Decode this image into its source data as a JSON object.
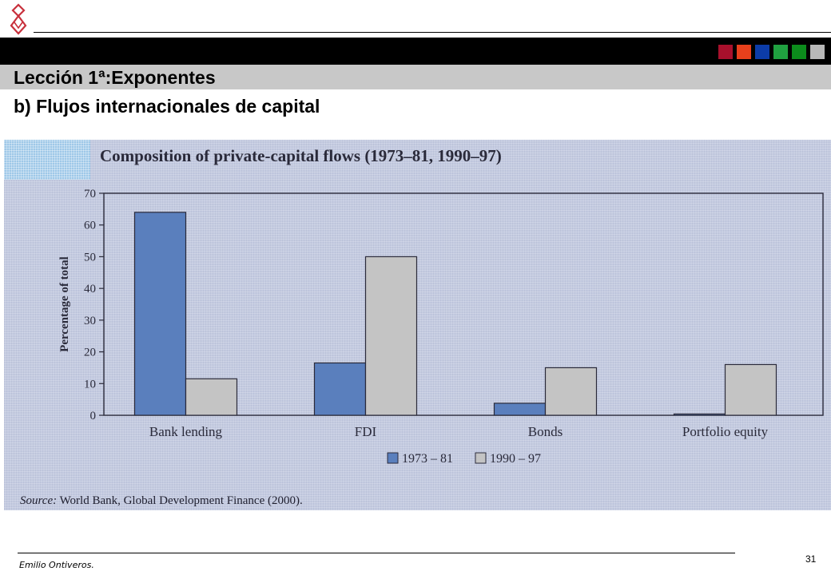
{
  "slide": {
    "title": "Lección 1ª:Exponentes",
    "subtitle": "b) Flujos internacionales de capital",
    "author": "Emilio Ontiveros.",
    "page_number": "31",
    "logo_icon": "ribbon-logo-icon",
    "swatch_colors": [
      "#a8102c",
      "#e8401c",
      "#0c3ca8",
      "#20a040",
      "#0c8c1c",
      "#b8b8b8"
    ]
  },
  "source": {
    "label": "Source:",
    "text": " World Bank, Global Development Finance (2000)."
  },
  "chart_data": {
    "type": "bar",
    "title": "Composition of private-capital flows (1973–81, 1990–97)",
    "ylabel": "Percentage of total",
    "xlabel": "",
    "ylim": [
      0,
      70
    ],
    "yticks": [
      0,
      10,
      20,
      30,
      40,
      50,
      60,
      70
    ],
    "categories": [
      "Bank lending",
      "FDI",
      "Bonds",
      "Portfolio equity"
    ],
    "series": [
      {
        "name": "1973 – 81",
        "values": [
          64,
          16.5,
          3.8,
          0.4
        ],
        "color": "#5a7fbd"
      },
      {
        "name": "1990 – 97",
        "values": [
          11.5,
          50,
          15,
          16
        ],
        "color": "#c4c4c4"
      }
    ],
    "grid": false,
    "legend": "bottom-center"
  }
}
